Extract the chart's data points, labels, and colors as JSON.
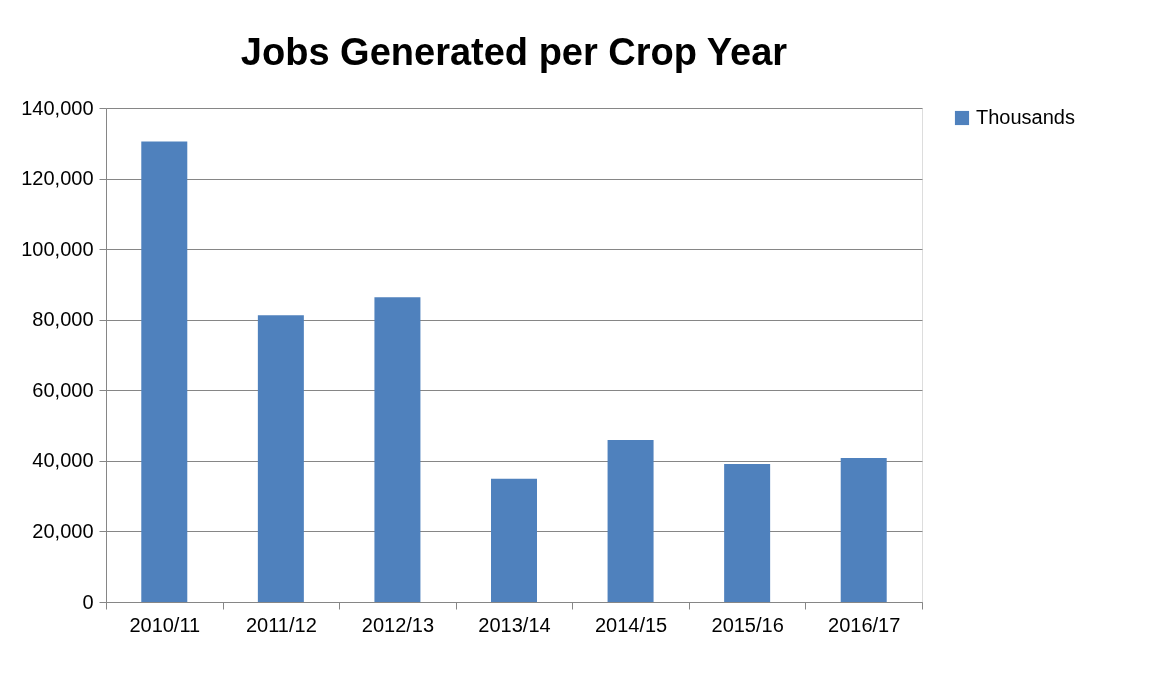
{
  "chart_data": {
    "type": "bar",
    "title": "Jobs Generated per Crop Year",
    "categories": [
      "2010/11",
      "2011/12",
      "2012/13",
      "2013/14",
      "2014/15",
      "2015/16",
      "2016/17"
    ],
    "series": [
      {
        "name": "Thousands",
        "color": "#4f81bd",
        "values": [
          130500,
          81300,
          86400,
          34900,
          45900,
          39100,
          40800
        ]
      }
    ],
    "ylim": [
      0,
      140000
    ],
    "yticks": [
      {
        "value": 0,
        "label": "0"
      },
      {
        "value": 20000,
        "label": "20,000"
      },
      {
        "value": 40000,
        "label": "40,000"
      },
      {
        "value": 60000,
        "label": "60,000"
      },
      {
        "value": 80000,
        "label": "80,000"
      },
      {
        "value": 100000,
        "label": "100,000"
      },
      {
        "value": 120000,
        "label": "120,000"
      },
      {
        "value": 140000,
        "label": "140,000"
      }
    ],
    "grid": "y",
    "legend": "right"
  }
}
